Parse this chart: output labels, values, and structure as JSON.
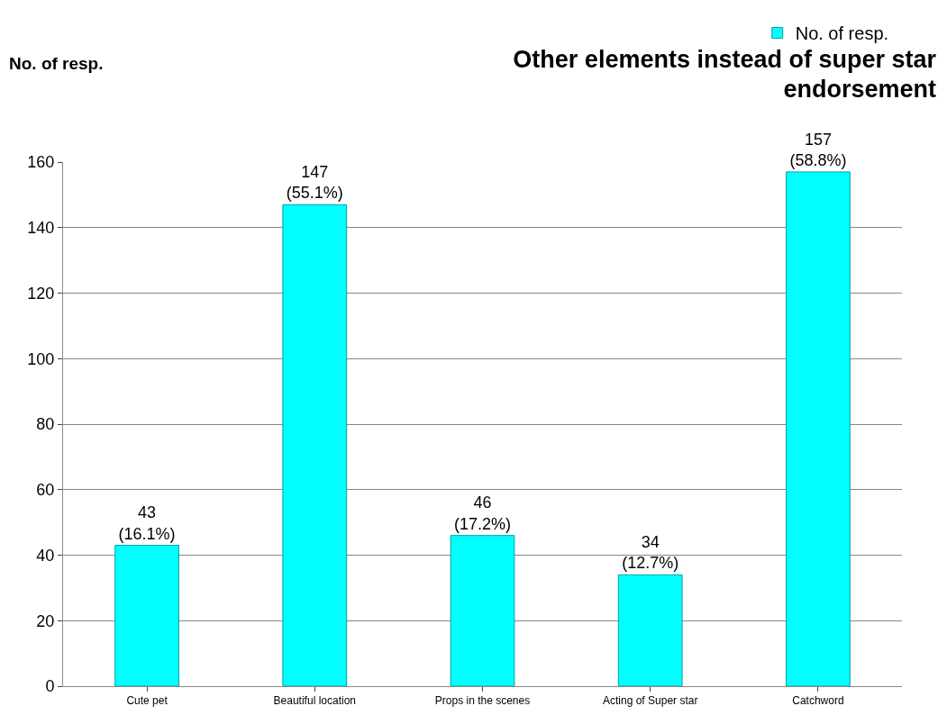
{
  "chart_data": {
    "type": "bar",
    "title": "Other elements instead of super star endorsement",
    "ylabel": "No. of resp.",
    "categories": [
      "Cute pet",
      "Beautiful location",
      "Props in the scenes",
      "Acting of Super star",
      "Catchword"
    ],
    "series": [
      {
        "name": "No. of resp.",
        "color": "#00ffff",
        "values": [
          43,
          147,
          46,
          34,
          157
        ],
        "value_labels": [
          "43\n(16.1%)",
          "147\n(55.1%)",
          "46\n(17.2%)",
          "34\n(12.7%)",
          "157\n(58.8%)"
        ]
      }
    ],
    "ylim": [
      0,
      160
    ],
    "yticks": [
      0,
      20,
      40,
      60,
      80,
      100,
      120,
      140,
      160
    ],
    "grid": "y",
    "legend": "top right"
  }
}
